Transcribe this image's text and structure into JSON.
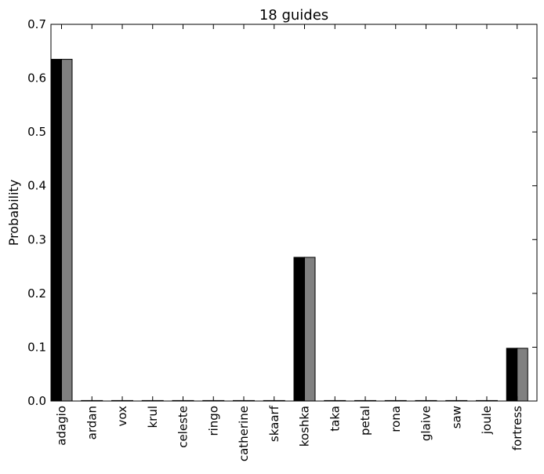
{
  "chart_data": {
    "type": "bar",
    "title": "18 guides",
    "xlabel": "",
    "ylabel": "Probability",
    "ylim": [
      0,
      0.7
    ],
    "yticks": [
      "0.0",
      "0.1",
      "0.2",
      "0.3",
      "0.4",
      "0.5",
      "0.6",
      "0.7"
    ],
    "categories": [
      "adagio",
      "ardan",
      "vox",
      "krul",
      "celeste",
      "ringo",
      "catherine",
      "skaarf",
      "koshka",
      "taka",
      "petal",
      "rona",
      "glaive",
      "saw",
      "joule",
      "fortress"
    ],
    "series": [
      {
        "color": "#000000",
        "values": [
          0.635,
          0,
          0,
          0,
          0,
          0,
          0,
          0,
          0.267,
          0,
          0,
          0,
          0,
          0,
          0,
          0.098
        ]
      },
      {
        "color": "#808080",
        "values": [
          0.635,
          0,
          0,
          0,
          0,
          0,
          0,
          0,
          0.267,
          0,
          0,
          0,
          0,
          0,
          0,
          0.098
        ]
      }
    ],
    "grid": false,
    "legend": "none"
  }
}
